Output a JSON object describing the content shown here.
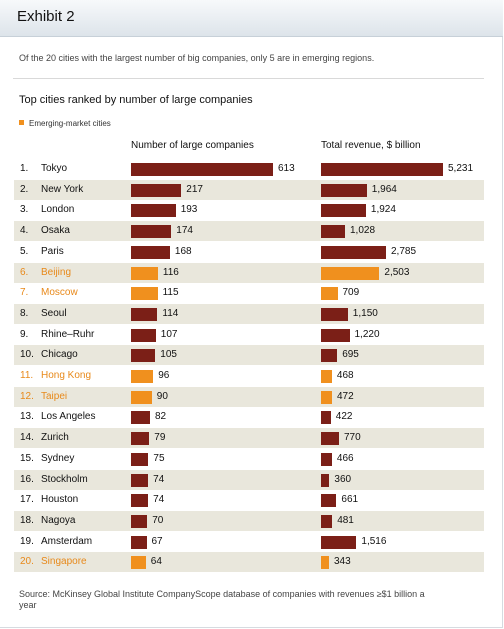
{
  "exhibit": "Exhibit 2",
  "subtitle": "Of the 20 cities with the largest number of big companies, only 5 are in emerging regions.",
  "source": "Source: McKinsey Global Institute CompanyScope database of companies with revenues ≥$1 billion a year",
  "colors": {
    "developed": "#7b1f17",
    "emerging": "#f0901e",
    "emerging_text": "#e8891a",
    "row_shade": "#e9e7dc"
  },
  "chart_data": {
    "type": "bar",
    "orientation": "horizontal",
    "title": "Top cities ranked by number of large companies",
    "legend": [
      "Emerging-market cities"
    ],
    "legend_position": "top-left",
    "categories": [
      "Tokyo",
      "New York",
      "London",
      "Osaka",
      "Paris",
      "Beijing",
      "Moscow",
      "Seoul",
      "Rhine–Ruhr",
      "Chicago",
      "Hong Kong",
      "Taipei",
      "Los Angeles",
      "Zurich",
      "Sydney",
      "Stockholm",
      "Houston",
      "Nagoya",
      "Amsterdam",
      "Singapore"
    ],
    "ranks": [
      "1.",
      "2.",
      "3.",
      "4.",
      "5.",
      "6.",
      "7.",
      "8.",
      "9.",
      "10.",
      "11.",
      "12.",
      "13.",
      "14.",
      "15.",
      "16.",
      "17.",
      "18.",
      "19.",
      "20."
    ],
    "emerging": [
      false,
      false,
      false,
      false,
      false,
      true,
      true,
      false,
      false,
      false,
      true,
      true,
      false,
      false,
      false,
      false,
      false,
      false,
      false,
      true
    ],
    "series": [
      {
        "name": "Number of large companies",
        "values": [
          613,
          217,
          193,
          174,
          168,
          116,
          115,
          114,
          107,
          105,
          96,
          90,
          82,
          79,
          75,
          74,
          74,
          70,
          67,
          64
        ],
        "labels": [
          "613",
          "217",
          "193",
          "174",
          "168",
          "116",
          "115",
          "114",
          "107",
          "105",
          "96",
          "90",
          "82",
          "79",
          "75",
          "74",
          "74",
          "70",
          "67",
          "64"
        ],
        "xlim": [
          0,
          613
        ]
      },
      {
        "name": "Total revenue, $ billion",
        "values": [
          5231,
          1964,
          1924,
          1028,
          2785,
          2503,
          709,
          1150,
          1220,
          695,
          468,
          472,
          422,
          770,
          466,
          360,
          661,
          481,
          1516,
          343
        ],
        "labels": [
          "5,231",
          "1,964",
          "1,924",
          "1,028",
          "2,785",
          "2,503",
          "709",
          "1,150",
          "1,220",
          "695",
          "468",
          "472",
          "422",
          "770",
          "466",
          "360",
          "661",
          "481",
          "1,516",
          "343"
        ],
        "xlim": [
          0,
          5231
        ]
      }
    ],
    "grid": false
  }
}
